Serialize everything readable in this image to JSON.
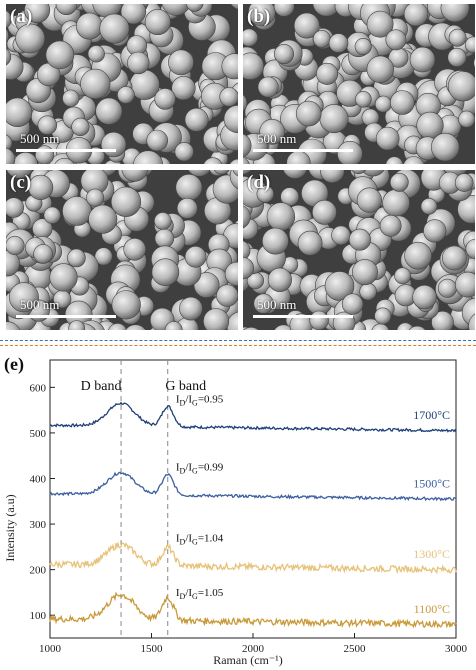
{
  "panels": [
    {
      "label": "(a)",
      "scale": "500 nm"
    },
    {
      "label": "(b)",
      "scale": "500 nm"
    },
    {
      "label": "(c)",
      "scale": "500 nm"
    },
    {
      "label": "(d)",
      "scale": "500 nm"
    }
  ],
  "chart_panel_label": "(e)",
  "chart_data": {
    "type": "line",
    "xlabel": "Raman (cm⁻¹)",
    "ylabel": "Intensity (a.u)",
    "xlim": [
      1000,
      3000
    ],
    "ylim": [
      50,
      660
    ],
    "xticks": [
      1000,
      1500,
      2000,
      2500,
      3000
    ],
    "yticks": [
      100,
      200,
      300,
      400,
      500,
      600
    ],
    "band_labels": [
      {
        "text": "D band",
        "x": 1350
      },
      {
        "text": "G band",
        "x": 1580
      }
    ],
    "series": [
      {
        "name": "1700°C",
        "ratio": "=0.95",
        "color": "#1f3e7a",
        "baseline": 505,
        "d_peak": 50,
        "g_peak": 45
      },
      {
        "name": "1500°C",
        "ratio": "=0.99",
        "color": "#3b5fa0",
        "baseline": 355,
        "d_peak": 48,
        "g_peak": 45
      },
      {
        "name": "1300°C",
        "ratio": "=1.04",
        "color": "#e7c27a",
        "baseline": 200,
        "d_peak": 45,
        "g_peak": 40
      },
      {
        "name": "1100°C",
        "ratio": "=1.05",
        "color": "#c99a3a",
        "baseline": 80,
        "d_peak": 55,
        "g_peak": 50
      }
    ]
  }
}
